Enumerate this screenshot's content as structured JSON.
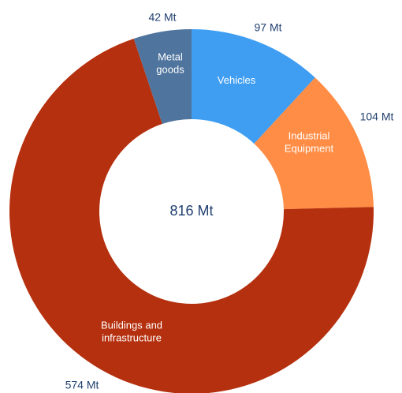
{
  "chart_data": {
    "type": "donut",
    "center_label": "816 Mt",
    "categories": [
      "Vehicles",
      "Industrial Equipment",
      "Buildings and infrastructure",
      "Metal goods"
    ],
    "values": [
      97,
      104,
      574,
      42
    ],
    "value_labels": [
      "97 Mt",
      "104 Mt",
      "574 Mt",
      "42 Mt"
    ],
    "colors": [
      "#3f9ef2",
      "#ff8d45",
      "#b5300e",
      "#4f749e"
    ]
  }
}
